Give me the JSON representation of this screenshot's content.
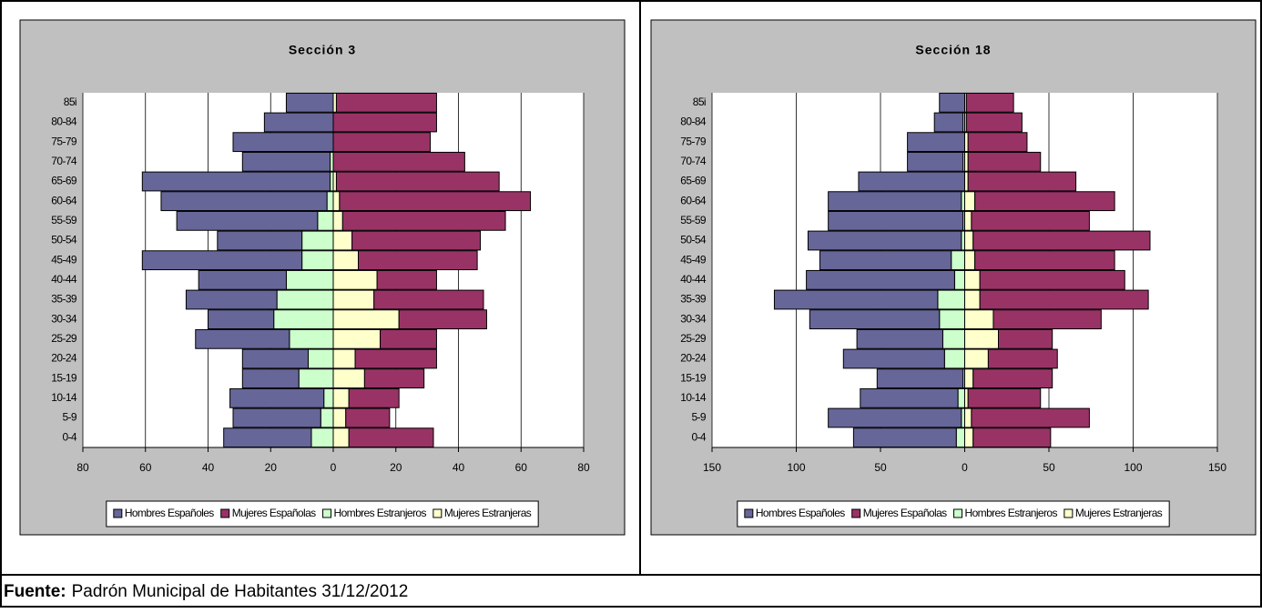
{
  "charts": [
    {
      "chart_data": {
        "type": "bar",
        "orientation": "horizontal",
        "title": "Sección 3",
        "categories": [
          "0-4",
          "5-9",
          "10-14",
          "15-19",
          "20-24",
          "25-29",
          "30-34",
          "35-39",
          "40-44",
          "45-49",
          "50-54",
          "55-59",
          "60-64",
          "65-69",
          "70-74",
          "75-79",
          "80-84",
          "85i"
        ],
        "series": [
          {
            "name": "Hombres Españoles",
            "color": "#666699",
            "values": [
              -28,
              -28,
              -30,
              -18,
              -21,
              -30,
              -21,
              -29,
              -28,
              -51,
              -27,
              -45,
              -53,
              -60,
              -28,
              -32,
              -22,
              -15
            ]
          },
          {
            "name": "Mujeres Españolas",
            "color": "#993366",
            "values": [
              27,
              14,
              16,
              19,
              26,
              18,
              28,
              35,
              19,
              38,
              41,
              52,
              61,
              52,
              42,
              31,
              33,
              32
            ]
          },
          {
            "name": "Hombres Estranjeros",
            "color": "#ccffcc",
            "values": [
              -7,
              -4,
              -3,
              -11,
              -8,
              -14,
              -19,
              -18,
              -15,
              -10,
              -10,
              -5,
              -2,
              -1,
              -1,
              0,
              0,
              0
            ]
          },
          {
            "name": "Mujeres Estranjeras",
            "color": "#ffffcc",
            "values": [
              5,
              4,
              5,
              10,
              7,
              15,
              21,
              13,
              14,
              8,
              6,
              3,
              2,
              1,
              0,
              0,
              0,
              1
            ]
          }
        ],
        "xlim": [
          -80,
          80
        ],
        "xticks": [
          {
            "value": -80,
            "label": "80"
          },
          {
            "value": -60,
            "label": "60"
          },
          {
            "value": -40,
            "label": "40"
          },
          {
            "value": -20,
            "label": "20"
          },
          0,
          20,
          40,
          60,
          80
        ],
        "grid": true,
        "legend": "bottom"
      }
    },
    {
      "chart_data": {
        "type": "bar",
        "orientation": "horizontal",
        "title": "Sección 18",
        "categories": [
          "0-4",
          "5-9",
          "10-14",
          "15-19",
          "20-24",
          "25-29",
          "30-34",
          "35-39",
          "40-44",
          "45-49",
          "50-54",
          "55-59",
          "60-64",
          "65-69",
          "70-74",
          "75-79",
          "80-84",
          "85i"
        ],
        "series": [
          {
            "name": "Hombres Españoles",
            "color": "#666699",
            "values": [
              -61,
              -79,
              -58,
              -51,
              -60,
              -51,
              -77,
              -97,
              -88,
              -78,
              -91,
              -80,
              -79,
              -63,
              -33,
              -34,
              -17,
              -15
            ]
          },
          {
            "name": "Mujeres Españolas",
            "color": "#993366",
            "values": [
              46,
              70,
              43,
              47,
              41,
              32,
              64,
              100,
              86,
              83,
              105,
              70,
              83,
              64,
              43,
              35,
              33,
              28
            ]
          },
          {
            "name": "Hombres Estranjeros",
            "color": "#ccffcc",
            "values": [
              -5,
              -2,
              -4,
              -1,
              -12,
              -13,
              -15,
              -16,
              -6,
              -8,
              -2,
              -1,
              -2,
              0,
              -1,
              0,
              -1,
              0
            ]
          },
          {
            "name": "Mujeres Estranjeras",
            "color": "#ffffcc",
            "values": [
              5,
              4,
              2,
              5,
              14,
              20,
              17,
              9,
              9,
              6,
              5,
              4,
              6,
              2,
              2,
              2,
              1,
              1
            ]
          }
        ],
        "xlim": [
          -150,
          150
        ],
        "xticks": [
          {
            "value": -150,
            "label": "150"
          },
          {
            "value": -100,
            "label": "100"
          },
          {
            "value": -50,
            "label": "50"
          },
          0,
          50,
          100,
          150
        ],
        "grid": true,
        "legend": "bottom"
      }
    }
  ],
  "footer": {
    "label": "Fuente:",
    "text": "Padrón Municipal de Habitantes 31/12/2012"
  }
}
